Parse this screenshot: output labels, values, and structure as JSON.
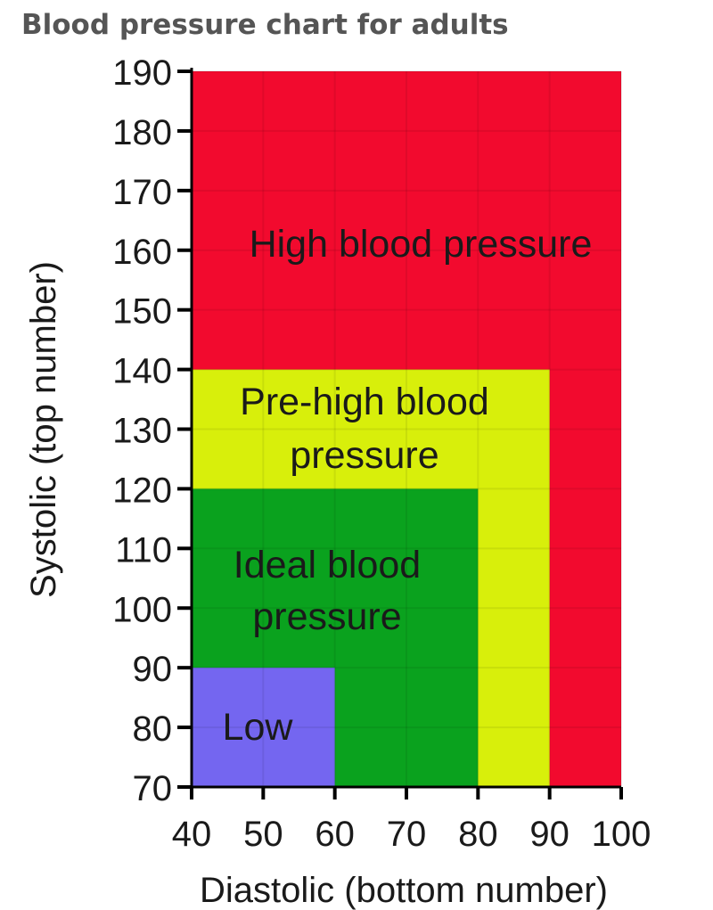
{
  "title": "Blood pressure chart for adults",
  "chart_data": {
    "type": "area",
    "title": "Blood pressure chart for adults",
    "xlabel": "Diastolic (bottom number)",
    "ylabel": "Systolic (top number)",
    "xlim": [
      40,
      100
    ],
    "ylim": [
      70,
      190
    ],
    "xticks": [
      40,
      50,
      60,
      70,
      80,
      90,
      100
    ],
    "yticks": [
      70,
      80,
      90,
      100,
      110,
      120,
      130,
      140,
      150,
      160,
      170,
      180,
      190
    ],
    "grid": true,
    "zones": [
      {
        "label_lines": [
          "High blood pressure"
        ],
        "x": [
          40,
          100
        ],
        "y": [
          70,
          190
        ],
        "color": "#f20a2e"
      },
      {
        "label_lines": [
          "Pre-high blood",
          "pressure"
        ],
        "x": [
          40,
          90
        ],
        "y": [
          70,
          140
        ],
        "color": "#d8ef0b"
      },
      {
        "label_lines": [
          "Ideal blood",
          "pressure"
        ],
        "x": [
          40,
          80
        ],
        "y": [
          70,
          120
        ],
        "color": "#0aa21e"
      },
      {
        "label_lines": [
          "Low"
        ],
        "x": [
          40,
          60
        ],
        "y": [
          70,
          90
        ],
        "color": "#7466f0"
      }
    ]
  }
}
